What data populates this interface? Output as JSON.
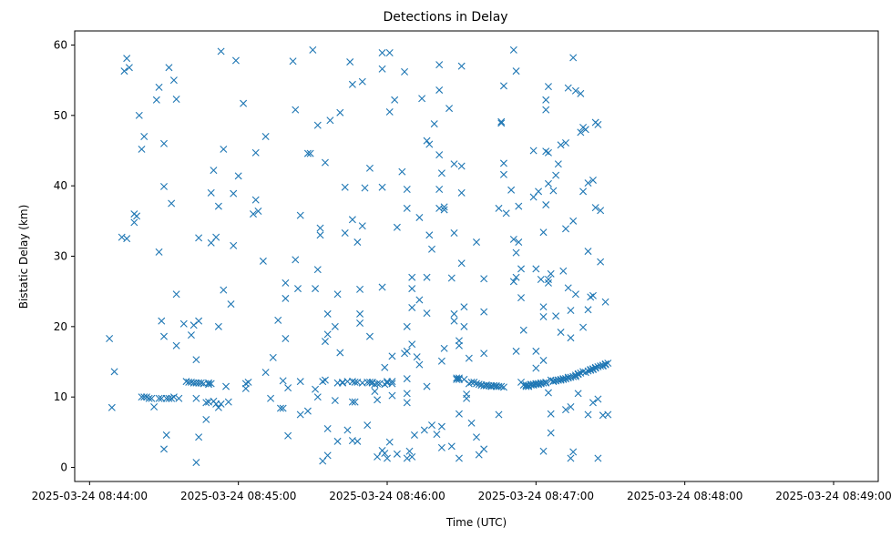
{
  "chart_data": {
    "type": "scatter",
    "title": "Detections in Delay",
    "xlabel": "Time (UTC)",
    "ylabel": "Bistatic Delay (km)",
    "x_unit": "seconds after 2025-03-24 08:44:00",
    "xlim": [
      -6,
      318
    ],
    "ylim": [
      -2,
      62
    ],
    "xticks": [
      {
        "value": 0,
        "label": "2025-03-24 08:44:00"
      },
      {
        "value": 60,
        "label": "2025-03-24 08:45:00"
      },
      {
        "value": 120,
        "label": "2025-03-24 08:46:00"
      },
      {
        "value": 180,
        "label": "2025-03-24 08:47:00"
      },
      {
        "value": 240,
        "label": "2025-03-24 08:48:00"
      },
      {
        "value": 300,
        "label": "2025-03-24 08:49:00"
      }
    ],
    "yticks": [
      0,
      10,
      20,
      30,
      40,
      50,
      60
    ],
    "grid": false,
    "legend": "none",
    "marker": "x",
    "color": "#1f77b4",
    "points": [
      [
        8,
        18.3
      ],
      [
        9,
        8.5
      ],
      [
        10,
        13.6
      ],
      [
        13,
        32.7
      ],
      [
        14,
        56.3
      ],
      [
        15,
        58.1
      ],
      [
        15,
        32.5
      ],
      [
        16,
        56.8
      ],
      [
        18,
        34.8
      ],
      [
        18,
        36
      ],
      [
        19,
        35.7
      ],
      [
        20,
        50
      ],
      [
        21,
        45.2
      ],
      [
        21,
        10
      ],
      [
        22,
        47
      ],
      [
        22,
        10
      ],
      [
        23,
        10
      ],
      [
        24,
        9.8
      ],
      [
        25,
        9.8
      ],
      [
        26,
        8.6
      ],
      [
        27,
        52.2
      ],
      [
        28,
        54
      ],
      [
        28,
        9.8
      ],
      [
        28,
        30.6
      ],
      [
        29,
        20.8
      ],
      [
        29,
        9.8
      ],
      [
        30,
        18.6
      ],
      [
        30,
        2.6
      ],
      [
        30,
        39.9
      ],
      [
        30,
        46
      ],
      [
        31,
        9.8
      ],
      [
        31,
        4.6
      ],
      [
        32,
        56.8
      ],
      [
        32,
        9.8
      ],
      [
        33,
        37.5
      ],
      [
        33,
        9.8
      ],
      [
        34,
        55
      ],
      [
        34,
        10
      ],
      [
        35,
        52.3
      ],
      [
        35,
        24.6
      ],
      [
        35,
        17.3
      ],
      [
        36,
        9.8
      ],
      [
        38,
        20.4
      ],
      [
        39,
        12.2
      ],
      [
        40,
        12.1
      ],
      [
        41,
        12.1
      ],
      [
        41,
        18.8
      ],
      [
        42,
        12
      ],
      [
        42,
        20.2
      ],
      [
        43,
        15.3
      ],
      [
        43,
        12
      ],
      [
        43,
        9.8
      ],
      [
        43,
        0.7
      ],
      [
        44,
        20.8
      ],
      [
        44,
        12
      ],
      [
        44,
        4.3
      ],
      [
        44,
        32.6
      ],
      [
        45,
        12
      ],
      [
        46,
        11.9
      ],
      [
        47,
        6.8
      ],
      [
        47,
        9.2
      ],
      [
        48,
        12
      ],
      [
        48,
        11.8
      ],
      [
        48,
        9.3
      ],
      [
        49,
        39
      ],
      [
        49,
        31.9
      ],
      [
        49,
        11.9
      ],
      [
        50,
        9.4
      ],
      [
        50,
        42.2
      ],
      [
        51,
        32.7
      ],
      [
        51,
        9
      ],
      [
        52,
        37.1
      ],
      [
        52,
        8.5
      ],
      [
        52,
        20
      ],
      [
        53,
        9
      ],
      [
        53,
        59.1
      ],
      [
        54,
        25.2
      ],
      [
        54,
        45.2
      ],
      [
        55,
        11.5
      ],
      [
        56,
        9.3
      ],
      [
        57,
        23.2
      ],
      [
        58,
        38.9
      ],
      [
        58,
        31.5
      ],
      [
        59,
        57.8
      ],
      [
        60,
        41.4
      ],
      [
        62,
        51.7
      ],
      [
        63,
        11.2
      ],
      [
        63,
        11.9
      ],
      [
        64,
        12.1
      ],
      [
        66,
        36
      ],
      [
        67,
        38
      ],
      [
        67,
        44.7
      ],
      [
        68,
        36.4
      ],
      [
        70,
        29.3
      ],
      [
        71,
        13.5
      ],
      [
        71,
        47
      ],
      [
        73,
        9.8
      ],
      [
        74,
        15.6
      ],
      [
        76,
        20.9
      ],
      [
        77,
        8.4
      ],
      [
        78,
        8.4
      ],
      [
        78,
        12.3
      ],
      [
        79,
        24
      ],
      [
        79,
        18.3
      ],
      [
        79,
        26.2
      ],
      [
        80,
        11.3
      ],
      [
        80,
        4.5
      ],
      [
        82,
        57.7
      ],
      [
        83,
        29.5
      ],
      [
        83,
        50.8
      ],
      [
        84,
        25.4
      ],
      [
        85,
        12.2
      ],
      [
        85,
        7.5
      ],
      [
        85,
        35.8
      ],
      [
        88,
        44.6
      ],
      [
        88,
        8
      ],
      [
        89,
        44.6
      ],
      [
        90,
        59.3
      ],
      [
        91,
        11.1
      ],
      [
        91,
        25.4
      ],
      [
        92,
        48.6
      ],
      [
        92,
        28.1
      ],
      [
        92,
        10
      ],
      [
        93,
        34
      ],
      [
        93,
        33
      ],
      [
        94,
        12.2
      ],
      [
        94,
        0.9
      ],
      [
        95,
        43.3
      ],
      [
        95,
        12.4
      ],
      [
        95,
        17.9
      ],
      [
        96,
        21.8
      ],
      [
        96,
        1.7
      ],
      [
        96,
        5.5
      ],
      [
        96,
        18.9
      ],
      [
        97,
        49.3
      ],
      [
        99,
        20
      ],
      [
        99,
        9.5
      ],
      [
        100,
        24.6
      ],
      [
        100,
        3.7
      ],
      [
        100,
        12
      ],
      [
        101,
        50.4
      ],
      [
        101,
        16.3
      ],
      [
        102,
        12.1
      ],
      [
        102,
        12
      ],
      [
        103,
        33.3
      ],
      [
        103,
        39.8
      ],
      [
        104,
        12.2
      ],
      [
        104,
        5.3
      ],
      [
        105,
        57.6
      ],
      [
        106,
        54.4
      ],
      [
        106,
        12.2
      ],
      [
        106,
        35.2
      ],
      [
        106,
        9.3
      ],
      [
        106,
        3.8
      ],
      [
        107,
        12.1
      ],
      [
        107,
        9.3
      ],
      [
        108,
        12.1
      ],
      [
        108,
        3.7
      ],
      [
        108,
        32
      ],
      [
        109,
        25.3
      ],
      [
        109,
        21.8
      ],
      [
        109,
        20.5
      ],
      [
        110,
        12
      ],
      [
        110,
        34.3
      ],
      [
        110,
        54.8
      ],
      [
        111,
        39.7
      ],
      [
        112,
        12.1
      ],
      [
        112,
        6
      ],
      [
        113,
        12.1
      ],
      [
        113,
        42.5
      ],
      [
        113,
        18.6
      ],
      [
        114,
        12
      ],
      [
        114,
        12.1
      ],
      [
        115,
        10.8
      ],
      [
        115,
        11.8
      ],
      [
        116,
        11.9
      ],
      [
        116,
        9.6
      ],
      [
        116,
        1.5
      ],
      [
        117,
        11.9
      ],
      [
        118,
        39.8
      ],
      [
        118,
        58.9
      ],
      [
        118,
        56.6
      ],
      [
        118,
        2.4
      ],
      [
        118,
        25.6
      ],
      [
        119,
        11.8
      ],
      [
        119,
        2
      ],
      [
        119,
        14.2
      ],
      [
        120,
        12.2
      ],
      [
        120,
        1.3
      ],
      [
        120,
        12
      ],
      [
        121,
        58.9
      ],
      [
        121,
        50.5
      ],
      [
        121,
        3.6
      ],
      [
        122,
        11.9
      ],
      [
        122,
        12.2
      ],
      [
        122,
        10.2
      ],
      [
        122,
        15.8
      ],
      [
        123,
        52.2
      ],
      [
        124,
        34.1
      ],
      [
        124,
        1.9
      ],
      [
        126,
        42
      ],
      [
        127,
        56.2
      ],
      [
        127,
        16.2
      ],
      [
        128,
        39.5
      ],
      [
        128,
        12.6
      ],
      [
        128,
        1.3
      ],
      [
        128,
        10.5
      ],
      [
        128,
        9.2
      ],
      [
        128,
        36.8
      ],
      [
        128,
        20
      ],
      [
        128,
        16.5
      ],
      [
        129,
        2.3
      ],
      [
        130,
        25.4
      ],
      [
        130,
        1.5
      ],
      [
        130,
        22.7
      ],
      [
        130,
        27
      ],
      [
        130,
        17.5
      ],
      [
        131,
        4.6
      ],
      [
        132,
        15.7
      ],
      [
        133,
        35.5
      ],
      [
        133,
        23.8
      ],
      [
        133,
        14.6
      ],
      [
        134,
        52.4
      ],
      [
        135,
        5.3
      ],
      [
        136,
        27
      ],
      [
        136,
        11.5
      ],
      [
        136,
        21.9
      ],
      [
        136,
        46.4
      ],
      [
        137,
        45.9
      ],
      [
        137,
        33
      ],
      [
        138,
        6
      ],
      [
        138,
        31
      ],
      [
        139,
        48.8
      ],
      [
        140,
        4.7
      ],
      [
        141,
        57.2
      ],
      [
        141,
        39.5
      ],
      [
        141,
        36.8
      ],
      [
        141,
        44.4
      ],
      [
        141,
        53.6
      ],
      [
        142,
        2.8
      ],
      [
        142,
        41.8
      ],
      [
        142,
        15.1
      ],
      [
        142,
        5.8
      ],
      [
        143,
        16.9
      ],
      [
        143,
        37
      ],
      [
        143,
        36.6
      ],
      [
        145,
        51
      ],
      [
        146,
        26.9
      ],
      [
        146,
        3
      ],
      [
        147,
        21.8
      ],
      [
        147,
        20.8
      ],
      [
        147,
        33.3
      ],
      [
        147,
        43.1
      ],
      [
        148,
        12.7
      ],
      [
        148,
        12.5
      ],
      [
        149,
        12.7
      ],
      [
        149,
        18
      ],
      [
        149,
        17.3
      ],
      [
        149,
        7.6
      ],
      [
        149,
        1.3
      ],
      [
        149,
        12.5
      ],
      [
        150,
        57
      ],
      [
        150,
        42.8
      ],
      [
        150,
        39
      ],
      [
        150,
        29
      ],
      [
        151,
        20
      ],
      [
        151,
        22.8
      ],
      [
        151,
        12.5
      ],
      [
        152,
        10.4
      ],
      [
        152,
        9.8
      ],
      [
        153,
        15.5
      ],
      [
        153,
        11.9
      ],
      [
        154,
        12.1
      ],
      [
        154,
        6.3
      ],
      [
        155,
        12.1
      ],
      [
        156,
        4.3
      ],
      [
        156,
        32
      ],
      [
        156,
        11.9
      ],
      [
        157,
        1.8
      ],
      [
        157,
        11.8
      ],
      [
        158,
        11.7
      ],
      [
        158,
        11.7
      ],
      [
        159,
        2.6
      ],
      [
        159,
        22.1
      ],
      [
        159,
        26.8
      ],
      [
        159,
        16.2
      ],
      [
        159,
        11.6
      ],
      [
        160,
        11.7
      ],
      [
        160,
        11.6
      ],
      [
        161,
        11.6
      ],
      [
        162,
        11.6
      ],
      [
        162,
        11.5
      ],
      [
        163,
        11.6
      ],
      [
        163,
        11.6
      ],
      [
        164,
        11.6
      ],
      [
        164,
        11.5
      ],
      [
        165,
        11.5
      ],
      [
        165,
        36.8
      ],
      [
        165,
        7.5
      ],
      [
        166,
        49.1
      ],
      [
        166,
        48.9
      ],
      [
        166,
        11.5
      ],
      [
        167,
        54.2
      ],
      [
        167,
        11.4
      ],
      [
        167,
        43.2
      ],
      [
        167,
        41.6
      ],
      [
        168,
        36.1
      ],
      [
        170,
        39.4
      ],
      [
        171,
        59.3
      ],
      [
        171,
        32.4
      ],
      [
        171,
        26.4
      ],
      [
        172,
        16.5
      ],
      [
        172,
        56.3
      ],
      [
        172,
        30.5
      ],
      [
        172,
        27
      ],
      [
        173,
        32
      ],
      [
        173,
        37.1
      ],
      [
        174,
        24.1
      ],
      [
        174,
        12.1
      ],
      [
        174,
        28.2
      ],
      [
        175,
        19.5
      ],
      [
        175,
        11.7
      ],
      [
        176,
        11.7
      ],
      [
        176,
        11.5
      ],
      [
        177,
        11.6
      ],
      [
        177,
        11.5
      ],
      [
        177,
        11.6
      ],
      [
        178,
        11.7
      ],
      [
        178,
        11.8
      ],
      [
        179,
        11.7
      ],
      [
        179,
        11.8
      ],
      [
        179,
        45
      ],
      [
        179,
        38.4
      ],
      [
        180,
        28.2
      ],
      [
        180,
        16.5
      ],
      [
        180,
        14.1
      ],
      [
        180,
        11.9
      ],
      [
        180,
        11.8
      ],
      [
        181,
        11.8
      ],
      [
        181,
        11.8
      ],
      [
        181,
        11.9
      ],
      [
        181,
        39.2
      ],
      [
        182,
        26.7
      ],
      [
        182,
        12
      ],
      [
        182,
        11.9
      ],
      [
        183,
        15.2
      ],
      [
        183,
        12
      ],
      [
        183,
        2.3
      ],
      [
        183,
        33.4
      ],
      [
        183,
        22.8
      ],
      [
        183,
        21.4
      ],
      [
        184,
        12.1
      ],
      [
        184,
        37.3
      ],
      [
        184,
        12
      ],
      [
        184,
        44.9
      ],
      [
        184,
        52.2
      ],
      [
        184,
        50.8
      ],
      [
        185,
        40.3
      ],
      [
        185,
        26.2
      ],
      [
        185,
        44.7
      ],
      [
        185,
        26.7
      ],
      [
        185,
        54.1
      ],
      [
        185,
        10.6
      ],
      [
        186,
        12.4
      ],
      [
        186,
        27.5
      ],
      [
        186,
        7.6
      ],
      [
        186,
        4.9
      ],
      [
        187,
        12.2
      ],
      [
        187,
        12.3
      ],
      [
        187,
        39.3
      ],
      [
        188,
        21.5
      ],
      [
        188,
        12.3
      ],
      [
        188,
        12.3
      ],
      [
        188,
        41.5
      ],
      [
        189,
        12.4
      ],
      [
        189,
        12.4
      ],
      [
        189,
        43.1
      ],
      [
        190,
        12.5
      ],
      [
        190,
        19.2
      ],
      [
        190,
        45.8
      ],
      [
        190,
        12.4
      ],
      [
        191,
        12.6
      ],
      [
        191,
        12.5
      ],
      [
        191,
        27.9
      ],
      [
        192,
        12.6
      ],
      [
        192,
        12.6
      ],
      [
        192,
        8.2
      ],
      [
        192,
        33.9
      ],
      [
        192,
        46.1
      ],
      [
        193,
        12.8
      ],
      [
        193,
        12.7
      ],
      [
        193,
        53.9
      ],
      [
        193,
        25.5
      ],
      [
        194,
        12.8
      ],
      [
        194,
        1.3
      ],
      [
        194,
        18.4
      ],
      [
        194,
        22.3
      ],
      [
        194,
        8.6
      ],
      [
        195,
        58.2
      ],
      [
        195,
        2.2
      ],
      [
        195,
        12.9
      ],
      [
        195,
        35
      ],
      [
        196,
        13.1
      ],
      [
        196,
        24.6
      ],
      [
        196,
        53.5
      ],
      [
        196,
        12.9
      ],
      [
        197,
        13.2
      ],
      [
        197,
        10.5
      ],
      [
        197,
        13.3
      ],
      [
        198,
        53.1
      ],
      [
        198,
        47.6
      ],
      [
        198,
        13.4
      ],
      [
        199,
        39.2
      ],
      [
        199,
        19.9
      ],
      [
        199,
        13.6
      ],
      [
        199,
        48.3
      ],
      [
        200,
        48
      ],
      [
        200,
        13.5
      ],
      [
        201,
        40.4
      ],
      [
        201,
        30.7
      ],
      [
        201,
        7.5
      ],
      [
        201,
        13.7
      ],
      [
        201,
        22.4
      ],
      [
        202,
        13.8
      ],
      [
        202,
        24.2
      ],
      [
        202,
        13.9
      ],
      [
        203,
        13.9
      ],
      [
        203,
        24.4
      ],
      [
        203,
        40.8
      ],
      [
        203,
        14
      ],
      [
        203,
        9.2
      ],
      [
        204,
        14.2
      ],
      [
        204,
        36.9
      ],
      [
        204,
        49
      ],
      [
        204,
        14.1
      ],
      [
        205,
        14.3
      ],
      [
        205,
        9.7
      ],
      [
        205,
        1.3
      ],
      [
        205,
        48.7
      ],
      [
        206,
        14.4
      ],
      [
        206,
        36.5
      ],
      [
        206,
        29.2
      ],
      [
        207,
        14.4
      ],
      [
        207,
        14.5
      ],
      [
        207,
        7.4
      ],
      [
        208,
        14.6
      ],
      [
        208,
        14.7
      ],
      [
        208,
        23.5
      ],
      [
        209,
        14.8
      ],
      [
        209,
        7.5
      ]
    ]
  }
}
